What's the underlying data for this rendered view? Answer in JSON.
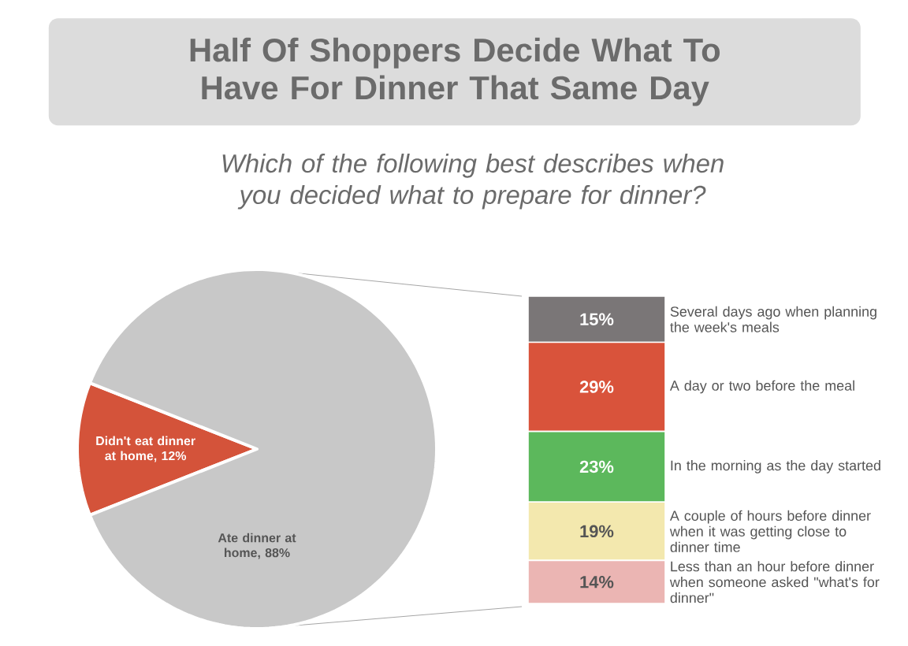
{
  "chart_data": [
    {
      "type": "pie",
      "title": "Half Of Shoppers Decide What To Have For Dinner That Same Day",
      "subtitle": "Which of the following best describes when you decided what to prepare for dinner?",
      "categories": [
        "Didn't eat dinner at home, 12%",
        "Ate dinner at home, 88%"
      ],
      "values": [
        12,
        88
      ],
      "colors": [
        "#d4533a",
        "#c8c8c8"
      ]
    },
    {
      "type": "bar",
      "stacked": true,
      "categories": [
        null
      ],
      "series": [
        {
          "name": "Less than an hour before dinner when someone asked \"what's for dinner\"",
          "color": "#ebb5b3",
          "values": [
            14
          ],
          "value_labels": [
            "14%"
          ]
        },
        {
          "name": "A couple of hours before dinner when it was getting close to dinner time",
          "color": "#f3e8ae",
          "values": [
            19
          ],
          "value_labels": [
            "19%"
          ]
        },
        {
          "name": "In the morning as the day started",
          "color": "#5cb85c",
          "values": [
            23
          ],
          "value_labels": [
            "23%"
          ]
        },
        {
          "name": "A day or two before the meal",
          "color": "#d9533b",
          "values": [
            29
          ],
          "value_labels": [
            "29%"
          ]
        },
        {
          "name": "Several days ago when planning the week's meals",
          "color": "#7a7677",
          "values": [
            15
          ],
          "value_labels": [
            "15%"
          ]
        }
      ]
    }
  ]
}
